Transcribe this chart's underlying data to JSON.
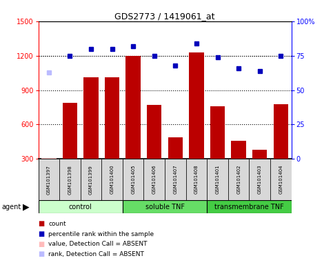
{
  "title": "GDS2773 / 1419061_at",
  "samples": [
    "GSM101397",
    "GSM101398",
    "GSM101399",
    "GSM101400",
    "GSM101405",
    "GSM101406",
    "GSM101407",
    "GSM101408",
    "GSM101401",
    "GSM101402",
    "GSM101403",
    "GSM101404"
  ],
  "counts": [
    310,
    790,
    1010,
    1010,
    1200,
    770,
    490,
    1230,
    760,
    460,
    380,
    780
  ],
  "counts_absent": [
    true,
    false,
    false,
    false,
    false,
    false,
    false,
    false,
    false,
    false,
    false,
    false
  ],
  "percentile_ranks": [
    null,
    75,
    80,
    80,
    82,
    75,
    68,
    84,
    74,
    66,
    64,
    75
  ],
  "percentile_absent": [
    false,
    false,
    false,
    false,
    false,
    false,
    false,
    false,
    false,
    false,
    false,
    false
  ],
  "percentile_absent_val": 63,
  "groups": [
    {
      "name": "control",
      "start": 0,
      "end": 4,
      "color": "#ccffcc"
    },
    {
      "name": "soluble TNF",
      "start": 4,
      "end": 8,
      "color": "#66dd66"
    },
    {
      "name": "transmembrane TNF",
      "start": 8,
      "end": 12,
      "color": "#44cc44"
    }
  ],
  "bar_color": "#bb0000",
  "bar_absent_color": "#ffbbbb",
  "dot_color": "#0000bb",
  "dot_absent_color": "#bbbbff",
  "ylim_left": [
    300,
    1500
  ],
  "ylim_right": [
    0,
    100
  ],
  "yticks_left": [
    300,
    600,
    900,
    1200,
    1500
  ],
  "yticks_right": [
    0,
    25,
    50,
    75,
    100
  ],
  "ytick_right_labels": [
    "0",
    "25",
    "50",
    "75",
    "100%"
  ],
  "grid_values": [
    600,
    900,
    1200
  ],
  "background_color": "#ffffff",
  "plot_bg_color": "#ffffff",
  "agent_label": "agent",
  "legend_items": [
    {
      "color": "#bb0000",
      "label": "count",
      "marker": "s"
    },
    {
      "color": "#0000bb",
      "label": "percentile rank within the sample",
      "marker": "s"
    },
    {
      "color": "#ffbbbb",
      "label": "value, Detection Call = ABSENT",
      "marker": "s"
    },
    {
      "color": "#bbbbff",
      "label": "rank, Detection Call = ABSENT",
      "marker": "s"
    }
  ]
}
